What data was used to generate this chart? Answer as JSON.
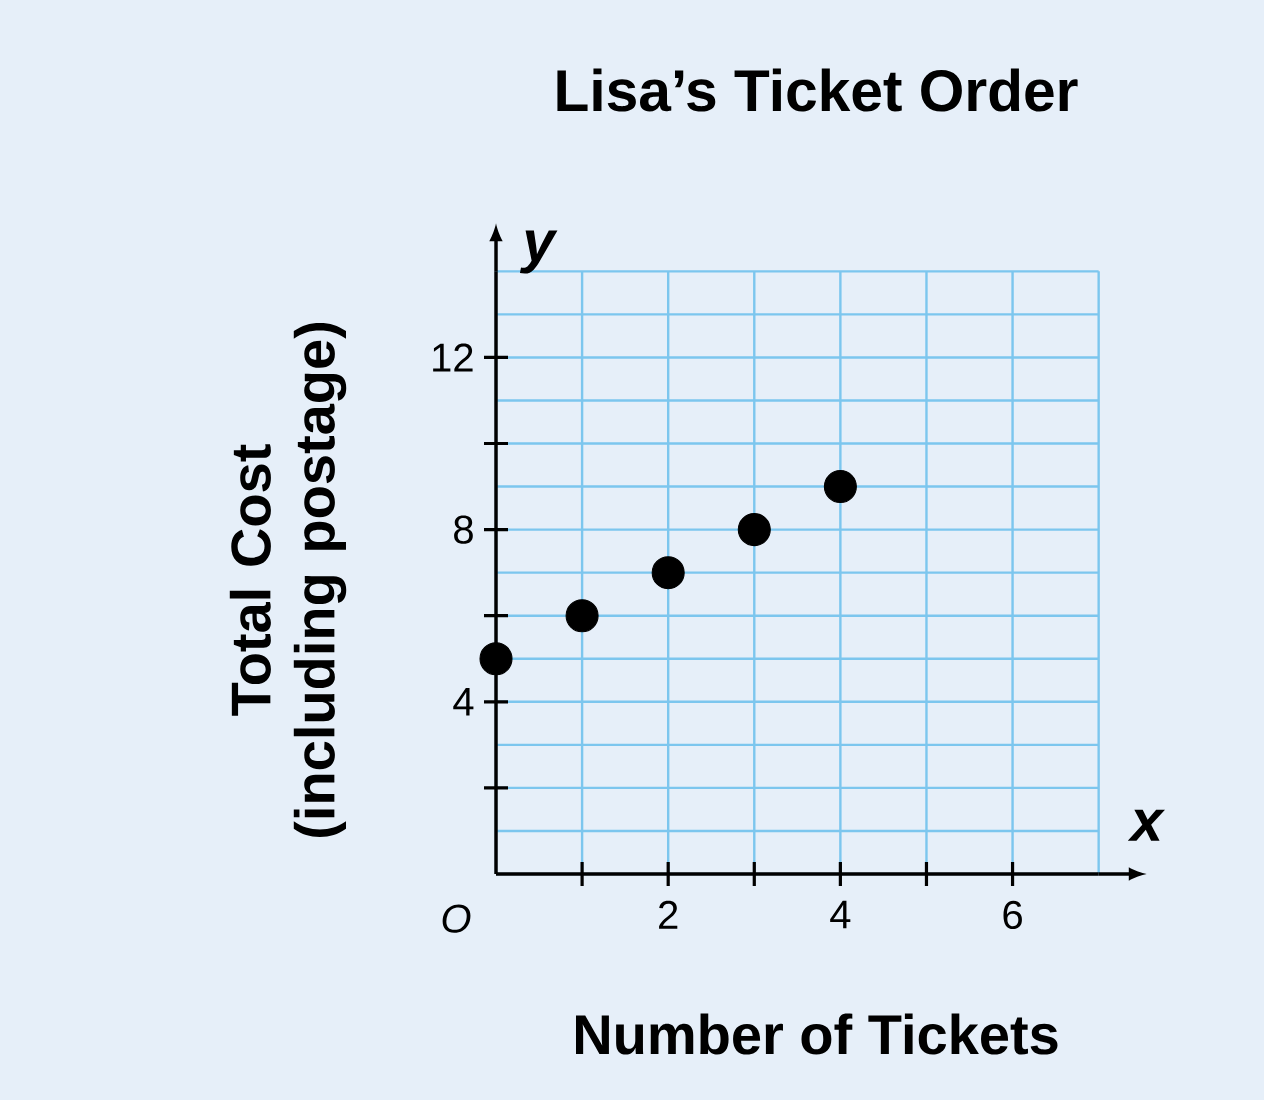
{
  "chart_data": {
    "type": "scatter",
    "title": "Lisa’s Ticket Order",
    "xlabel": "Number of Tickets",
    "ylabel": "Total Cost (including postage)",
    "x": [
      0,
      1,
      2,
      3,
      4
    ],
    "values": [
      5,
      6,
      7,
      8,
      9
    ],
    "color": "#000000",
    "xlim": [
      0,
      7
    ],
    "ylim": [
      0,
      14
    ],
    "xticks": [
      {
        "value": 1,
        "label": null
      },
      2,
      {
        "value": 3,
        "label": null
      },
      4,
      {
        "value": 5,
        "label": null
      },
      6
    ],
    "yticks": [
      {
        "value": 2,
        "label": null
      },
      4,
      {
        "value": 6,
        "label": null
      },
      8,
      {
        "value": 10,
        "label": null
      },
      12
    ],
    "grid": true,
    "annotations": [
      "x",
      "y",
      "O"
    ]
  }
}
